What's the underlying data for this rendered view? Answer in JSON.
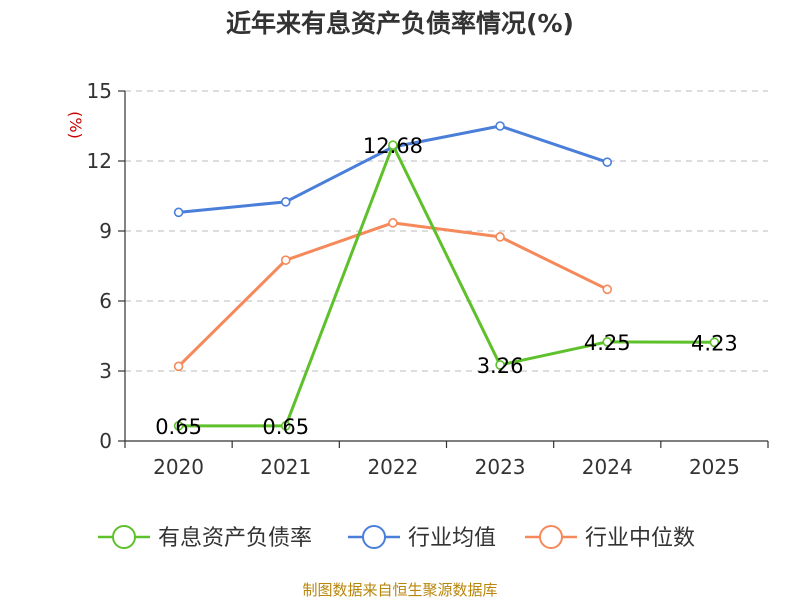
{
  "source_note": "制图数据来自恒生聚源数据库",
  "colors": {
    "source": "#b8860b",
    "unit": "#cc0000",
    "grid": "#bbbbbb",
    "axis": "#333333"
  },
  "chart_data": {
    "type": "line",
    "title": "近年来有息资产负债率情况(%)",
    "ylabel": "(%)",
    "xlabel": "",
    "categories": [
      "2020",
      "2021",
      "2022",
      "2023",
      "2024",
      "2025"
    ],
    "ylim": [
      0,
      15
    ],
    "yticks": [
      0,
      3,
      6,
      9,
      12,
      15
    ],
    "grid": true,
    "legend_position": "bottom",
    "series": [
      {
        "name": "有息资产负债率",
        "color": "#5ec12b",
        "values": [
          0.65,
          0.65,
          12.68,
          3.26,
          4.25,
          4.23
        ],
        "labels": [
          "0.65",
          "0.65",
          "12.68",
          "3.26",
          "4.25",
          "4.23"
        ]
      },
      {
        "name": "行业均值",
        "color": "#4a7fd9",
        "values": [
          9.8,
          10.25,
          12.6,
          13.5,
          11.95,
          null
        ]
      },
      {
        "name": "行业中位数",
        "color": "#f5895a",
        "values": [
          3.2,
          7.75,
          9.35,
          8.75,
          6.5,
          null
        ]
      }
    ]
  }
}
